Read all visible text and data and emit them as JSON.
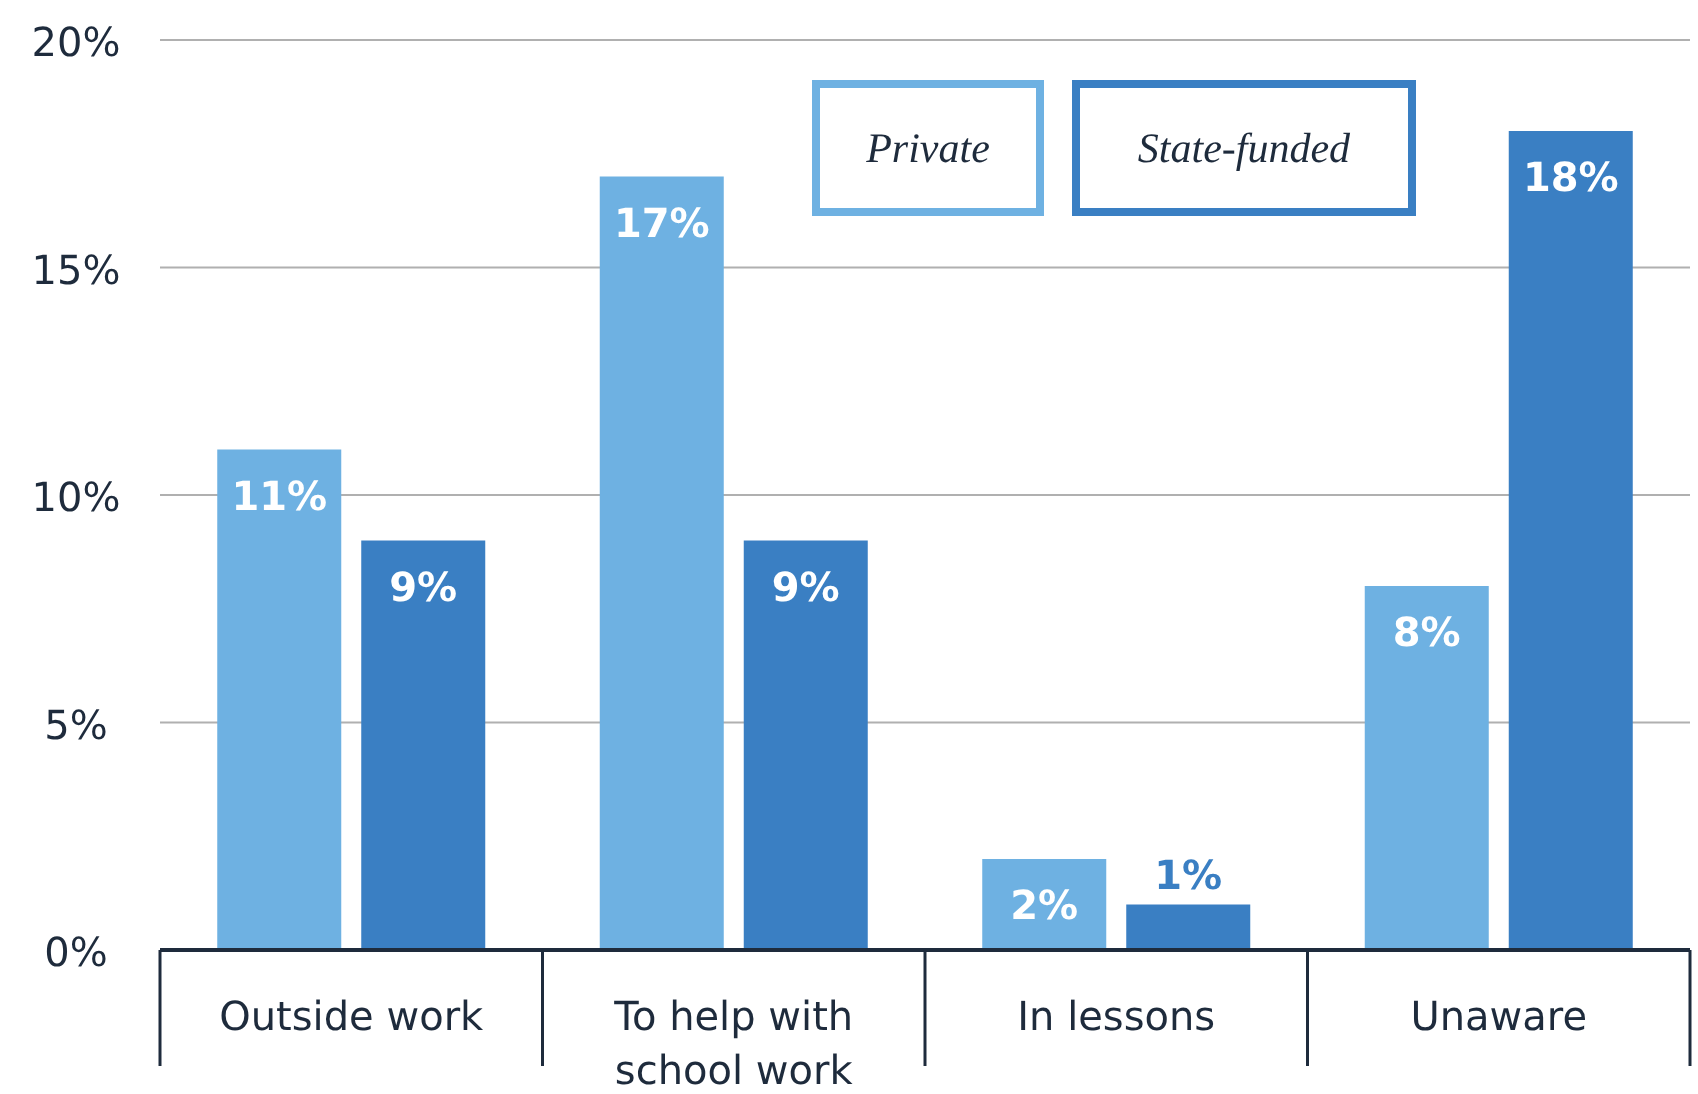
{
  "chart_data": {
    "type": "bar",
    "categories": [
      "Outside work",
      "To help with school work",
      "In lessons",
      "Unaware"
    ],
    "series": [
      {
        "name": "Private",
        "color": "#6eb1e2",
        "values": [
          11,
          17,
          2,
          8
        ],
        "value_labels": [
          "11%",
          "17%",
          "2%",
          "8%"
        ]
      },
      {
        "name": "State-funded",
        "color": "#3a7fc3",
        "values": [
          9,
          9,
          1,
          18
        ],
        "value_labels": [
          "9%",
          "9%",
          "1%",
          "18%"
        ]
      }
    ],
    "ylim": [
      0,
      20
    ],
    "yticks": [
      {
        "value": 0,
        "label": "0%"
      },
      {
        "value": 5,
        "label": "5%"
      },
      {
        "value": 10,
        "label": "10%"
      },
      {
        "value": 15,
        "label": "15%"
      },
      {
        "value": 20,
        "label": "20%"
      }
    ],
    "grid": "y",
    "legend": "top"
  }
}
